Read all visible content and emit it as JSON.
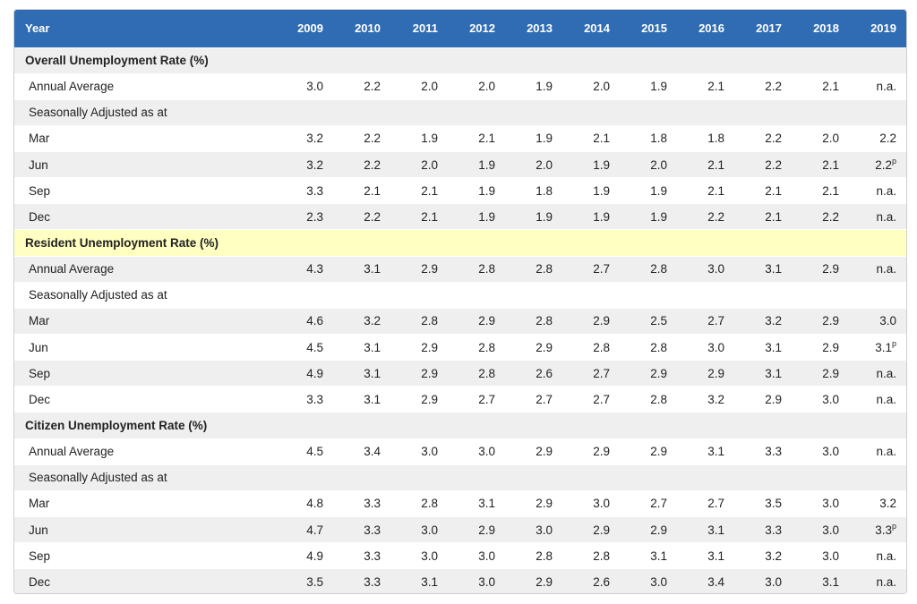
{
  "header": {
    "label": "Year",
    "years": [
      "2009",
      "2010",
      "2011",
      "2012",
      "2013",
      "2014",
      "2015",
      "2016",
      "2017",
      "2018",
      "2019"
    ]
  },
  "rows": [
    {
      "kind": "section",
      "bg": "alt",
      "label": "Overall Unemployment Rate (%)",
      "values": []
    },
    {
      "kind": "data",
      "bg": "white",
      "label": "Annual Average",
      "values": [
        "3.0",
        "2.2",
        "2.0",
        "2.0",
        "1.9",
        "2.0",
        "1.9",
        "2.1",
        "2.2",
        "2.1",
        "n.a."
      ]
    },
    {
      "kind": "sub",
      "bg": "alt",
      "label": "Seasonally Adjusted as at",
      "values": []
    },
    {
      "kind": "data",
      "bg": "white",
      "label": "Mar",
      "values": [
        "3.2",
        "2.2",
        "1.9",
        "2.1",
        "1.9",
        "2.1",
        "1.8",
        "1.8",
        "2.2",
        "2.0",
        "2.2"
      ]
    },
    {
      "kind": "data",
      "bg": "alt",
      "label": "Jun",
      "values": [
        "3.2",
        "2.2",
        "2.0",
        "1.9",
        "2.0",
        "1.9",
        "2.0",
        "2.1",
        "2.2",
        "2.1",
        "2.2"
      ],
      "last_sup": "p"
    },
    {
      "kind": "data",
      "bg": "white",
      "label": "Sep",
      "values": [
        "3.3",
        "2.1",
        "2.1",
        "1.9",
        "1.8",
        "1.9",
        "1.9",
        "2.1",
        "2.1",
        "2.1",
        "n.a."
      ]
    },
    {
      "kind": "data",
      "bg": "alt",
      "label": "Dec",
      "values": [
        "2.3",
        "2.2",
        "2.1",
        "1.9",
        "1.9",
        "1.9",
        "1.9",
        "2.2",
        "2.1",
        "2.2",
        "n.a."
      ]
    },
    {
      "kind": "section",
      "bg": "hl",
      "label": "Resident Unemployment Rate (%)",
      "values": []
    },
    {
      "kind": "data",
      "bg": "alt",
      "label": "Annual Average",
      "values": [
        "4.3",
        "3.1",
        "2.9",
        "2.8",
        "2.8",
        "2.7",
        "2.8",
        "3.0",
        "3.1",
        "2.9",
        "n.a."
      ]
    },
    {
      "kind": "sub",
      "bg": "white",
      "label": "Seasonally Adjusted as at",
      "values": []
    },
    {
      "kind": "data",
      "bg": "alt",
      "label": "Mar",
      "values": [
        "4.6",
        "3.2",
        "2.8",
        "2.9",
        "2.8",
        "2.9",
        "2.5",
        "2.7",
        "3.2",
        "2.9",
        "3.0"
      ]
    },
    {
      "kind": "data",
      "bg": "white",
      "label": "Jun",
      "values": [
        "4.5",
        "3.1",
        "2.9",
        "2.8",
        "2.9",
        "2.8",
        "2.8",
        "3.0",
        "3.1",
        "2.9",
        "3.1"
      ],
      "last_sup": "p"
    },
    {
      "kind": "data",
      "bg": "alt",
      "label": "Sep",
      "values": [
        "4.9",
        "3.1",
        "2.9",
        "2.8",
        "2.6",
        "2.7",
        "2.9",
        "2.9",
        "3.1",
        "2.9",
        "n.a."
      ]
    },
    {
      "kind": "data",
      "bg": "white",
      "label": "Dec",
      "values": [
        "3.3",
        "3.1",
        "2.9",
        "2.7",
        "2.7",
        "2.7",
        "2.8",
        "3.2",
        "2.9",
        "3.0",
        "n.a."
      ]
    },
    {
      "kind": "section",
      "bg": "alt",
      "label": "Citizen Unemployment Rate (%)",
      "values": []
    },
    {
      "kind": "data",
      "bg": "white",
      "label": "Annual Average",
      "values": [
        "4.5",
        "3.4",
        "3.0",
        "3.0",
        "2.9",
        "2.9",
        "2.9",
        "3.1",
        "3.3",
        "3.0",
        "n.a."
      ]
    },
    {
      "kind": "sub",
      "bg": "alt",
      "label": "Seasonally Adjusted as at",
      "values": []
    },
    {
      "kind": "data",
      "bg": "white",
      "label": "Mar",
      "values": [
        "4.8",
        "3.3",
        "2.8",
        "3.1",
        "2.9",
        "3.0",
        "2.7",
        "2.7",
        "3.5",
        "3.0",
        "3.2"
      ]
    },
    {
      "kind": "data",
      "bg": "alt",
      "label": "Jun",
      "values": [
        "4.7",
        "3.3",
        "3.0",
        "2.9",
        "3.0",
        "2.9",
        "2.9",
        "3.1",
        "3.3",
        "3.0",
        "3.3"
      ],
      "last_sup": "p"
    },
    {
      "kind": "data",
      "bg": "white",
      "label": "Sep",
      "values": [
        "4.9",
        "3.3",
        "3.0",
        "3.0",
        "2.8",
        "2.8",
        "3.1",
        "3.1",
        "3.2",
        "3.0",
        "n.a."
      ]
    },
    {
      "kind": "data",
      "bg": "alt",
      "label": "Dec",
      "values": [
        "3.5",
        "3.3",
        "3.1",
        "3.0",
        "2.9",
        "2.6",
        "3.0",
        "3.4",
        "3.0",
        "3.1",
        "n.a."
      ]
    }
  ]
}
